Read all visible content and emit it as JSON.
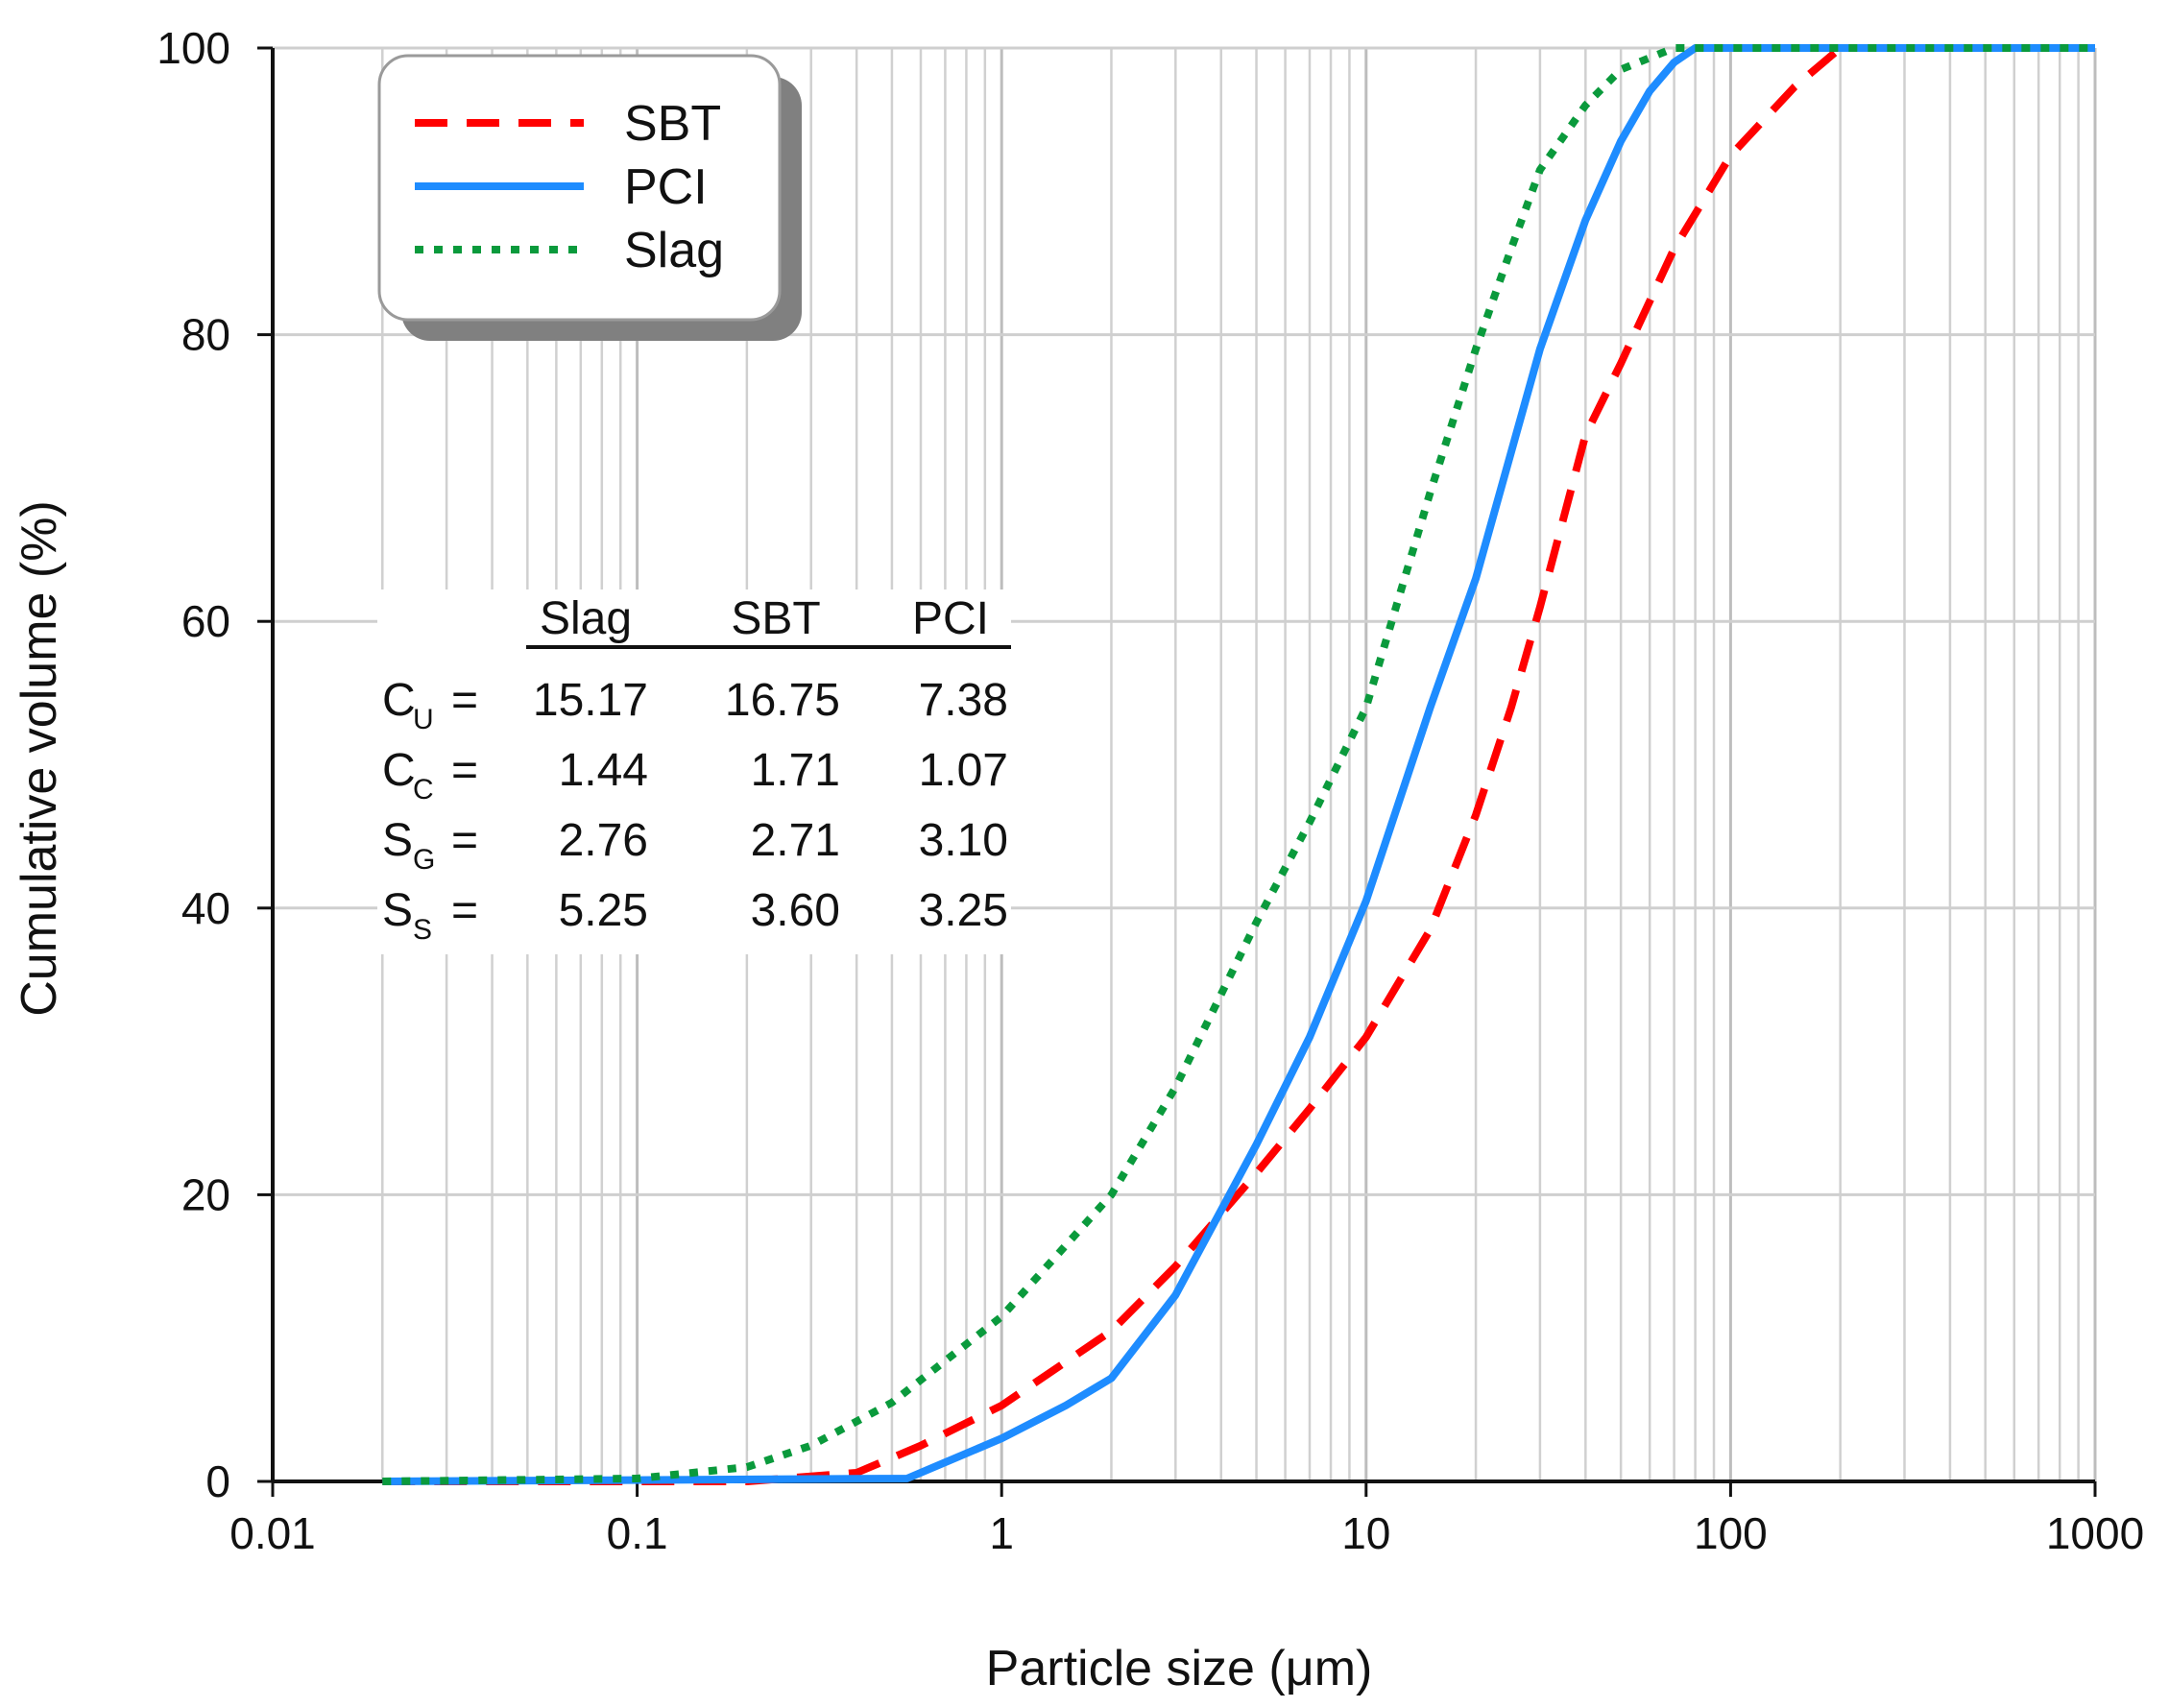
{
  "chart_data": {
    "type": "line",
    "xscale": "log",
    "xlabel": "Particle size (μm)",
    "ylabel": "Cumulative volume (%)",
    "xlim": [
      0.01,
      1000
    ],
    "ylim": [
      0,
      100
    ],
    "x_ticks": [
      "0.01",
      "0.1",
      "1",
      "10",
      "100",
      "1000"
    ],
    "y_ticks": [
      "0",
      "20",
      "40",
      "60",
      "80",
      "100"
    ],
    "grid": true,
    "legend_position": "top-left",
    "series": [
      {
        "name": "SBT",
        "color": "#ff0000",
        "style": "dashed",
        "points": [
          [
            0.02,
            0
          ],
          [
            0.2,
            0
          ],
          [
            0.4,
            0.6
          ],
          [
            0.6,
            2.5
          ],
          [
            1,
            5.3
          ],
          [
            2,
            10.5
          ],
          [
            3,
            15
          ],
          [
            5,
            21.5
          ],
          [
            7,
            26
          ],
          [
            10,
            31
          ],
          [
            15,
            38.5
          ],
          [
            20,
            46.5
          ],
          [
            25,
            54
          ],
          [
            30,
            61
          ],
          [
            40,
            73
          ],
          [
            50,
            78
          ],
          [
            70,
            86
          ],
          [
            100,
            92.5
          ],
          [
            150,
            97.3
          ],
          [
            200,
            100
          ],
          [
            1000,
            100
          ]
        ]
      },
      {
        "name": "PCI",
        "color": "#1e8cff",
        "style": "solid",
        "points": [
          [
            0.02,
            0
          ],
          [
            0.55,
            0.2
          ],
          [
            1,
            3
          ],
          [
            1.5,
            5.3
          ],
          [
            2,
            7.2
          ],
          [
            3,
            13
          ],
          [
            5,
            23.5
          ],
          [
            7,
            31
          ],
          [
            10,
            40.5
          ],
          [
            15,
            54
          ],
          [
            20,
            63
          ],
          [
            30,
            79
          ],
          [
            40,
            88
          ],
          [
            50,
            93.5
          ],
          [
            60,
            97
          ],
          [
            70,
            99
          ],
          [
            80,
            100
          ],
          [
            1000,
            100
          ]
        ]
      },
      {
        "name": "Slag",
        "color": "#0a9a3c",
        "style": "dotted",
        "points": [
          [
            0.02,
            0
          ],
          [
            0.1,
            0.2
          ],
          [
            0.2,
            1
          ],
          [
            0.3,
            2.5
          ],
          [
            0.5,
            5.5
          ],
          [
            1,
            11.5
          ],
          [
            2,
            20
          ],
          [
            3,
            27.5
          ],
          [
            5,
            39
          ],
          [
            7,
            46
          ],
          [
            10,
            54
          ],
          [
            15,
            69
          ],
          [
            20,
            79
          ],
          [
            25,
            86
          ],
          [
            30,
            91.5
          ],
          [
            40,
            96
          ],
          [
            50,
            98.5
          ],
          [
            70,
            100
          ],
          [
            1000,
            100
          ]
        ]
      }
    ],
    "stats_table": {
      "headers": [
        "Slag",
        "SBT",
        "PCI"
      ],
      "rows": [
        {
          "symbol": "C",
          "sub": "U",
          "values": [
            "15.17",
            "16.75",
            "7.38"
          ]
        },
        {
          "symbol": "C",
          "sub": "C",
          "values": [
            "1.44",
            "1.71",
            "1.07"
          ]
        },
        {
          "symbol": "S",
          "sub": "G",
          "values": [
            "2.76",
            "2.71",
            "3.10"
          ]
        },
        {
          "symbol": "S",
          "sub": "S",
          "values": [
            "5.25",
            "3.60",
            "3.25"
          ]
        }
      ]
    }
  }
}
